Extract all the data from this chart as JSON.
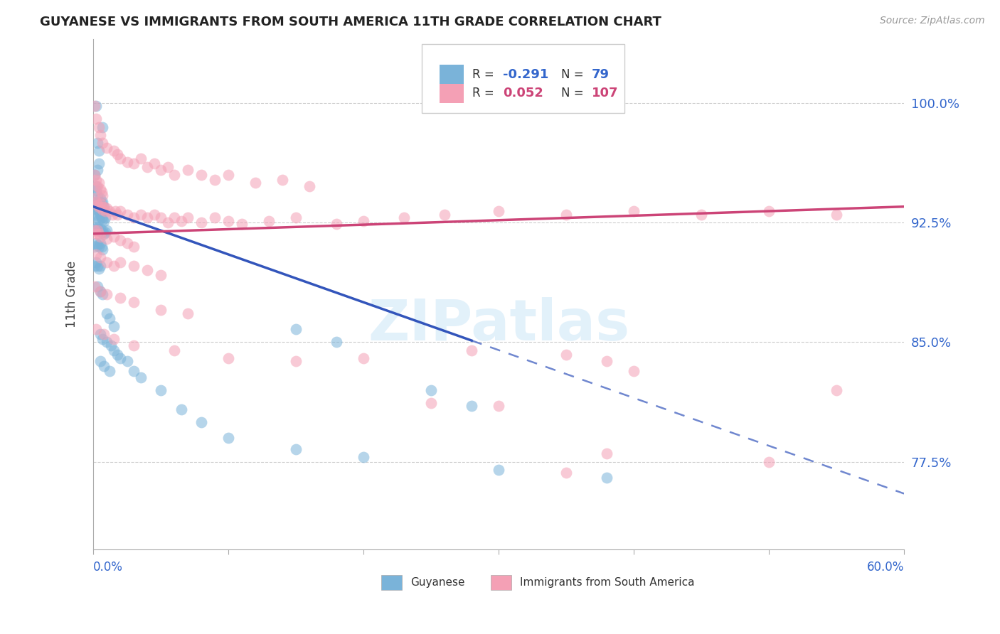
{
  "title": "GUYANESE VS IMMIGRANTS FROM SOUTH AMERICA 11TH GRADE CORRELATION CHART",
  "source": "Source: ZipAtlas.com",
  "ylabel": "11th Grade",
  "ylabel_ticks": [
    "77.5%",
    "85.0%",
    "92.5%",
    "100.0%"
  ],
  "ylabel_values": [
    0.775,
    0.85,
    0.925,
    1.0
  ],
  "xlim": [
    0.0,
    0.6
  ],
  "ylim": [
    0.72,
    1.04
  ],
  "legend_label_blue": "Guyanese",
  "legend_label_pink": "Immigrants from South America",
  "R_blue": -0.291,
  "N_blue": 79,
  "R_pink": 0.052,
  "N_pink": 107,
  "blue_color": "#7ab3d9",
  "pink_color": "#f4a0b5",
  "blue_line_color": "#3355bb",
  "pink_line_color": "#cc4477",
  "watermark": "ZIPatlas",
  "background_color": "#ffffff",
  "blue_line_x0": 0.0,
  "blue_line_y0": 0.935,
  "blue_line_x1": 0.6,
  "blue_line_y1": 0.755,
  "blue_line_solid_end": 0.28,
  "pink_line_x0": 0.0,
  "pink_line_y0": 0.918,
  "pink_line_x1": 0.6,
  "pink_line_y1": 0.935,
  "blue_dots": [
    [
      0.002,
      0.998
    ],
    [
      0.003,
      0.975
    ],
    [
      0.004,
      0.97
    ],
    [
      0.007,
      0.985
    ],
    [
      0.001,
      0.955
    ],
    [
      0.002,
      0.948
    ],
    [
      0.003,
      0.958
    ],
    [
      0.004,
      0.962
    ],
    [
      0.002,
      0.945
    ],
    [
      0.003,
      0.942
    ],
    [
      0.004,
      0.938
    ],
    [
      0.001,
      0.938
    ],
    [
      0.002,
      0.935
    ],
    [
      0.003,
      0.933
    ],
    [
      0.004,
      0.932
    ],
    [
      0.005,
      0.94
    ],
    [
      0.006,
      0.937
    ],
    [
      0.007,
      0.938
    ],
    [
      0.008,
      0.935
    ],
    [
      0.002,
      0.93
    ],
    [
      0.003,
      0.928
    ],
    [
      0.004,
      0.927
    ],
    [
      0.005,
      0.93
    ],
    [
      0.006,
      0.928
    ],
    [
      0.007,
      0.927
    ],
    [
      0.008,
      0.926
    ],
    [
      0.009,
      0.928
    ],
    [
      0.001,
      0.922
    ],
    [
      0.002,
      0.921
    ],
    [
      0.003,
      0.922
    ],
    [
      0.004,
      0.92
    ],
    [
      0.005,
      0.921
    ],
    [
      0.006,
      0.919
    ],
    [
      0.007,
      0.92
    ],
    [
      0.008,
      0.918
    ],
    [
      0.009,
      0.919
    ],
    [
      0.01,
      0.92
    ],
    [
      0.001,
      0.91
    ],
    [
      0.002,
      0.912
    ],
    [
      0.003,
      0.911
    ],
    [
      0.004,
      0.91
    ],
    [
      0.005,
      0.912
    ],
    [
      0.006,
      0.91
    ],
    [
      0.007,
      0.908
    ],
    [
      0.001,
      0.898
    ],
    [
      0.002,
      0.9
    ],
    [
      0.003,
      0.898
    ],
    [
      0.004,
      0.896
    ],
    [
      0.005,
      0.898
    ],
    [
      0.003,
      0.885
    ],
    [
      0.005,
      0.882
    ],
    [
      0.007,
      0.88
    ],
    [
      0.01,
      0.868
    ],
    [
      0.012,
      0.865
    ],
    [
      0.015,
      0.86
    ],
    [
      0.005,
      0.855
    ],
    [
      0.007,
      0.852
    ],
    [
      0.01,
      0.85
    ],
    [
      0.013,
      0.848
    ],
    [
      0.015,
      0.845
    ],
    [
      0.018,
      0.842
    ],
    [
      0.005,
      0.838
    ],
    [
      0.008,
      0.835
    ],
    [
      0.012,
      0.832
    ],
    [
      0.02,
      0.84
    ],
    [
      0.025,
      0.838
    ],
    [
      0.03,
      0.832
    ],
    [
      0.035,
      0.828
    ],
    [
      0.05,
      0.82
    ],
    [
      0.065,
      0.808
    ],
    [
      0.08,
      0.8
    ],
    [
      0.1,
      0.79
    ],
    [
      0.15,
      0.783
    ],
    [
      0.2,
      0.778
    ],
    [
      0.3,
      0.77
    ],
    [
      0.38,
      0.765
    ],
    [
      0.25,
      0.82
    ],
    [
      0.28,
      0.81
    ],
    [
      0.15,
      0.858
    ],
    [
      0.18,
      0.85
    ]
  ],
  "pink_dots": [
    [
      0.001,
      0.998
    ],
    [
      0.002,
      0.99
    ],
    [
      0.004,
      0.985
    ],
    [
      0.005,
      0.98
    ],
    [
      0.007,
      0.975
    ],
    [
      0.01,
      0.972
    ],
    [
      0.015,
      0.97
    ],
    [
      0.018,
      0.968
    ],
    [
      0.02,
      0.965
    ],
    [
      0.025,
      0.963
    ],
    [
      0.03,
      0.962
    ],
    [
      0.035,
      0.965
    ],
    [
      0.04,
      0.96
    ],
    [
      0.045,
      0.962
    ],
    [
      0.05,
      0.958
    ],
    [
      0.055,
      0.96
    ],
    [
      0.06,
      0.955
    ],
    [
      0.07,
      0.958
    ],
    [
      0.08,
      0.955
    ],
    [
      0.09,
      0.952
    ],
    [
      0.1,
      0.955
    ],
    [
      0.12,
      0.95
    ],
    [
      0.14,
      0.952
    ],
    [
      0.16,
      0.948
    ],
    [
      0.001,
      0.955
    ],
    [
      0.002,
      0.952
    ],
    [
      0.003,
      0.948
    ],
    [
      0.004,
      0.95
    ],
    [
      0.005,
      0.946
    ],
    [
      0.006,
      0.944
    ],
    [
      0.007,
      0.942
    ],
    [
      0.001,
      0.94
    ],
    [
      0.002,
      0.938
    ],
    [
      0.003,
      0.936
    ],
    [
      0.004,
      0.935
    ],
    [
      0.005,
      0.937
    ],
    [
      0.006,
      0.935
    ],
    [
      0.007,
      0.933
    ],
    [
      0.008,
      0.935
    ],
    [
      0.009,
      0.932
    ],
    [
      0.01,
      0.934
    ],
    [
      0.012,
      0.932
    ],
    [
      0.014,
      0.93
    ],
    [
      0.016,
      0.932
    ],
    [
      0.018,
      0.93
    ],
    [
      0.02,
      0.932
    ],
    [
      0.025,
      0.93
    ],
    [
      0.03,
      0.928
    ],
    [
      0.035,
      0.93
    ],
    [
      0.04,
      0.928
    ],
    [
      0.045,
      0.93
    ],
    [
      0.05,
      0.928
    ],
    [
      0.055,
      0.925
    ],
    [
      0.06,
      0.928
    ],
    [
      0.065,
      0.926
    ],
    [
      0.07,
      0.928
    ],
    [
      0.08,
      0.925
    ],
    [
      0.09,
      0.928
    ],
    [
      0.1,
      0.926
    ],
    [
      0.11,
      0.924
    ],
    [
      0.13,
      0.926
    ],
    [
      0.15,
      0.928
    ],
    [
      0.18,
      0.924
    ],
    [
      0.2,
      0.926
    ],
    [
      0.23,
      0.928
    ],
    [
      0.26,
      0.93
    ],
    [
      0.3,
      0.932
    ],
    [
      0.35,
      0.93
    ],
    [
      0.4,
      0.932
    ],
    [
      0.45,
      0.93
    ],
    [
      0.5,
      0.932
    ],
    [
      0.55,
      0.93
    ],
    [
      0.001,
      0.92
    ],
    [
      0.002,
      0.918
    ],
    [
      0.003,
      0.92
    ],
    [
      0.004,
      0.918
    ],
    [
      0.005,
      0.916
    ],
    [
      0.01,
      0.915
    ],
    [
      0.015,
      0.916
    ],
    [
      0.02,
      0.914
    ],
    [
      0.025,
      0.912
    ],
    [
      0.03,
      0.91
    ],
    [
      0.002,
      0.905
    ],
    [
      0.005,
      0.903
    ],
    [
      0.01,
      0.9
    ],
    [
      0.015,
      0.898
    ],
    [
      0.02,
      0.9
    ],
    [
      0.03,
      0.898
    ],
    [
      0.04,
      0.895
    ],
    [
      0.05,
      0.892
    ],
    [
      0.001,
      0.885
    ],
    [
      0.005,
      0.882
    ],
    [
      0.01,
      0.88
    ],
    [
      0.02,
      0.878
    ],
    [
      0.03,
      0.875
    ],
    [
      0.05,
      0.87
    ],
    [
      0.07,
      0.868
    ],
    [
      0.002,
      0.858
    ],
    [
      0.008,
      0.855
    ],
    [
      0.015,
      0.852
    ],
    [
      0.03,
      0.848
    ],
    [
      0.06,
      0.845
    ],
    [
      0.1,
      0.84
    ],
    [
      0.15,
      0.838
    ],
    [
      0.2,
      0.84
    ],
    [
      0.28,
      0.845
    ],
    [
      0.35,
      0.842
    ],
    [
      0.38,
      0.838
    ],
    [
      0.4,
      0.832
    ],
    [
      0.55,
      0.82
    ],
    [
      0.25,
      0.812
    ],
    [
      0.3,
      0.81
    ],
    [
      0.38,
      0.78
    ],
    [
      0.5,
      0.775
    ],
    [
      0.35,
      0.768
    ]
  ]
}
